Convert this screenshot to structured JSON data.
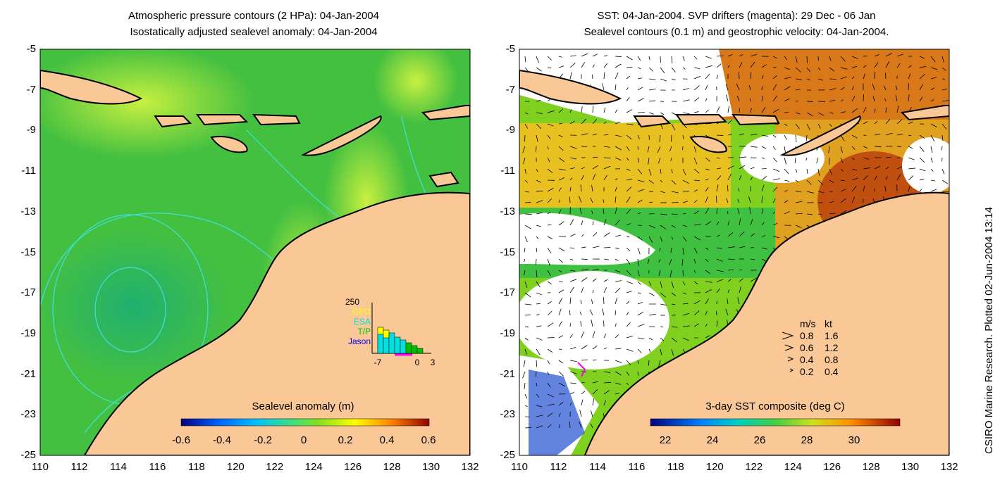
{
  "left_panel": {
    "title_line1": "Atmospheric pressure contours (2 HPa): 04-Jan-2004",
    "title_line2": "Isostatically adjusted sealevel anomaly: 04-Jan-2004",
    "colorbar": {
      "label": "Sealevel anomaly (m)",
      "ticks": [
        "-0.6",
        "-0.4",
        "-0.2",
        "0",
        "0.2",
        "0.4",
        "0.6"
      ]
    },
    "inset": {
      "y_max_label": "250",
      "legend": [
        {
          "label": "GFO",
          "color": "#ffff00"
        },
        {
          "label": "ESA",
          "color": "#00e0e0"
        },
        {
          "label": "T/P",
          "color": "#00c000"
        },
        {
          "label": "Jason",
          "color": "#0000ff"
        }
      ],
      "x_ticks": [
        "-7",
        "0",
        "3"
      ]
    }
  },
  "right_panel": {
    "title_line1": "SST: 04-Jan-2004. SVP drifters (magenta): 29 Dec - 06 Jan",
    "title_line2": "Sealevel contours (0.1 m) and geostrophic velocity: 04-Jan-2004.",
    "colorbar": {
      "label": "3-day SST composite (deg C)",
      "ticks": [
        "22",
        "24",
        "26",
        "28",
        "30"
      ]
    },
    "velocity_legend": {
      "header_ms": "m/s",
      "header_kt": "kt",
      "rows": [
        {
          "ms": "0.8",
          "kt": "1.6"
        },
        {
          "ms": "0.6",
          "kt": "1.2"
        },
        {
          "ms": "0.4",
          "kt": "0.8"
        },
        {
          "ms": "0.2",
          "kt": "0.4"
        }
      ]
    }
  },
  "axes": {
    "x_ticks": [
      "110",
      "112",
      "114",
      "116",
      "118",
      "120",
      "122",
      "124",
      "126",
      "128",
      "130",
      "132"
    ],
    "y_ticks": [
      "-5",
      "-7",
      "-9",
      "-11",
      "-13",
      "-15",
      "-17",
      "-19",
      "-21",
      "-23",
      "-25"
    ]
  },
  "credit": "CSIRO Marine Research. Plotted 02-Jun-2004 13:14",
  "colors": {
    "land": "#f9c896",
    "ocean_left": "#44c040",
    "sst_warm": "#e07818",
    "cloud": "#ffffff"
  }
}
